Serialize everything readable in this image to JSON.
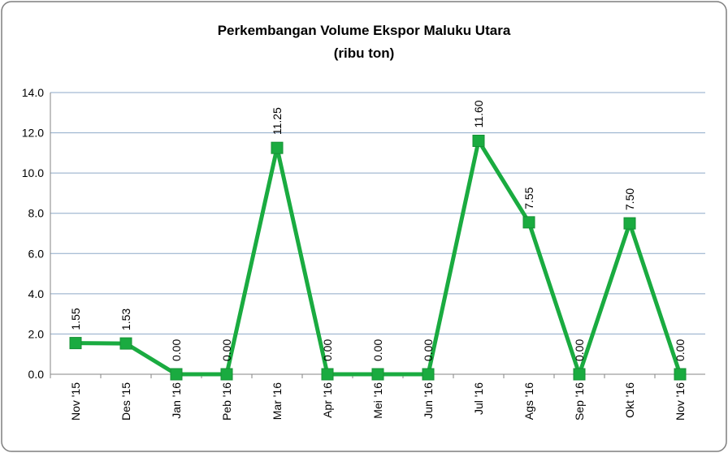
{
  "chart_data": {
    "type": "line",
    "title": "Perkembangan Volume Ekspor Maluku Utara",
    "subtitle": "(ribu ton)",
    "categories": [
      "Nov '15",
      "Des '15",
      "Jan '16",
      "Peb '16",
      "Mar '16",
      "Apr '16",
      "Mei '16",
      "Jun '16",
      "Jul '16",
      "Ags '16",
      "Sep '16",
      "Okt '16",
      "Nov '16"
    ],
    "values": [
      1.55,
      1.53,
      0,
      0,
      11.25,
      0,
      0,
      0,
      11.6,
      7.55,
      0,
      7.5,
      0
    ],
    "value_labels": [
      "1.55",
      "1.53",
      "0.00",
      "0.00",
      "11.25",
      "0.00",
      "0.00",
      "0.00",
      "11.60",
      "7.55",
      "0.00",
      "7.50",
      "0.00"
    ],
    "color": "#1aab40",
    "ylim": [
      0,
      14
    ],
    "yticks": [
      {
        "value": 0,
        "label": "0.0"
      },
      {
        "value": 2,
        "label": "2.0"
      },
      {
        "value": 4,
        "label": "4.0"
      },
      {
        "value": 6,
        "label": "6.0"
      },
      {
        "value": 8,
        "label": "8.0"
      },
      {
        "value": 10,
        "label": "10.0"
      },
      {
        "value": 12,
        "label": "12.0"
      },
      {
        "value": 14,
        "label": "14.0"
      }
    ],
    "grid": true
  }
}
